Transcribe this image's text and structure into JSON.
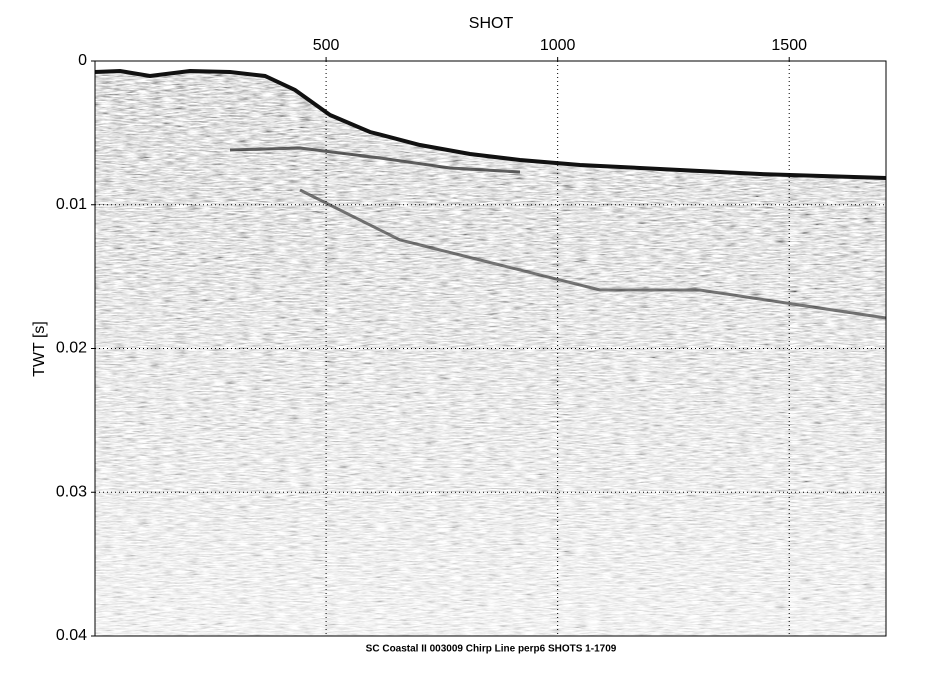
{
  "chart_data": {
    "type": "image",
    "x_label": "SHOT",
    "y_label": "TWT [s]",
    "caption": "SC Coastal II 003009 Chirp Line perp6 SHOTS 1-1709",
    "xlim": [
      1,
      1709
    ],
    "xticks": [
      500,
      1000,
      1500
    ],
    "ylim": [
      0,
      0.04
    ],
    "y_inverted": true,
    "yticks": [
      0,
      0.01,
      0.02,
      0.03,
      0.04
    ],
    "grid": true
  }
}
